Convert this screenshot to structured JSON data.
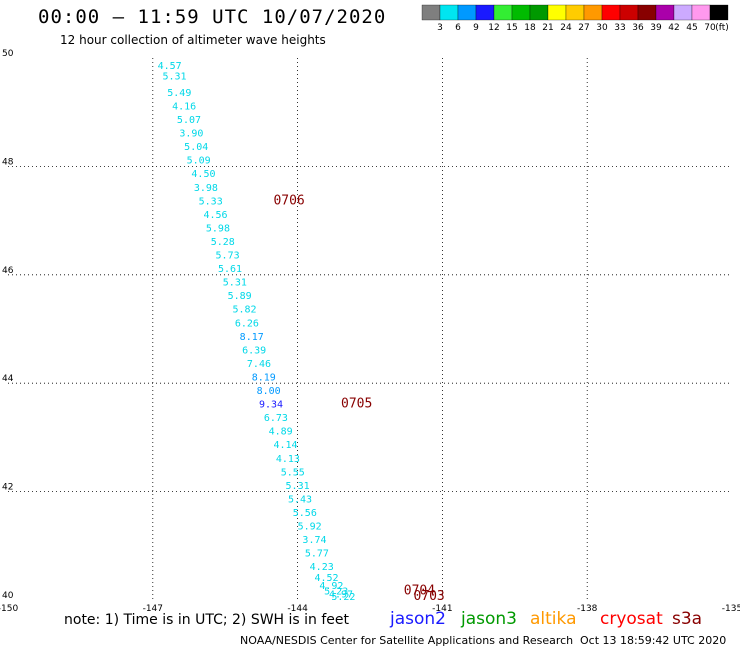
{
  "header": {
    "title": "00:00 – 11:59 UTC 10/07/2020",
    "subtitle": "12 hour collection of altimeter wave heights"
  },
  "colorbar": {
    "unit": "(ft)",
    "bins": [
      {
        "label": "3",
        "color": "#7f7f7f"
      },
      {
        "label": "6",
        "color": "#00e5f0"
      },
      {
        "label": "9",
        "color": "#0099ff"
      },
      {
        "label": "12",
        "color": "#1a1aff"
      },
      {
        "label": "15",
        "color": "#33ee33"
      },
      {
        "label": "18",
        "color": "#00bb00"
      },
      {
        "label": "21",
        "color": "#009900"
      },
      {
        "label": "24",
        "color": "#ffff00"
      },
      {
        "label": "27",
        "color": "#ffcc00"
      },
      {
        "label": "30",
        "color": "#ff9900"
      },
      {
        "label": "33",
        "color": "#ff0000"
      },
      {
        "label": "36",
        "color": "#cc0000"
      },
      {
        "label": "39",
        "color": "#880000"
      },
      {
        "label": "42",
        "color": "#aa00aa"
      },
      {
        "label": "45",
        "color": "#ccaaff"
      },
      {
        "label": "70",
        "color": "#ff99ee"
      },
      {
        "label": "",
        "color": "#000000"
      }
    ]
  },
  "chart_data": {
    "type": "scatter",
    "xlim": [
      -150,
      -135
    ],
    "ylim": [
      40,
      50
    ],
    "grid": true,
    "x_ticks": [
      {
        "value": -150,
        "label": "-150"
      },
      {
        "value": -147,
        "label": "-147"
      },
      {
        "value": -144,
        "label": "-144"
      },
      {
        "value": -141,
        "label": "-141"
      },
      {
        "value": -138,
        "label": "-138"
      },
      {
        "value": -135,
        "label": "-135"
      }
    ],
    "y_ticks": [
      {
        "value": 40,
        "label": "40"
      },
      {
        "value": 42,
        "label": "42"
      },
      {
        "value": 44,
        "label": "44"
      },
      {
        "value": 46,
        "label": "46"
      },
      {
        "value": 48,
        "label": "48"
      },
      {
        "value": 50,
        "label": "50"
      }
    ],
    "points": [
      {
        "lon": -146.9,
        "lat": 49.8,
        "value": "4.57",
        "color": "#00d8e8"
      },
      {
        "lon": -146.8,
        "lat": 49.6,
        "value": "5.31",
        "color": "#00d8e8"
      },
      {
        "lon": -146.7,
        "lat": 49.3,
        "value": "5.49",
        "color": "#00d8e8"
      },
      {
        "lon": -146.6,
        "lat": 49.05,
        "value": "4.16",
        "color": "#00d8e8"
      },
      {
        "lon": -146.5,
        "lat": 48.8,
        "value": "5.07",
        "color": "#00d8e8"
      },
      {
        "lon": -146.45,
        "lat": 48.55,
        "value": "3.90",
        "color": "#00d8e8"
      },
      {
        "lon": -146.35,
        "lat": 48.3,
        "value": "5.04",
        "color": "#00d8e8"
      },
      {
        "lon": -146.3,
        "lat": 48.05,
        "value": "5.09",
        "color": "#00d8e8"
      },
      {
        "lon": -146.2,
        "lat": 47.8,
        "value": "4.50",
        "color": "#00d8e8"
      },
      {
        "lon": -146.15,
        "lat": 47.55,
        "value": "3.98",
        "color": "#00d8e8"
      },
      {
        "lon": -146.05,
        "lat": 47.3,
        "value": "5.33",
        "color": "#00d8e8"
      },
      {
        "lon": -145.95,
        "lat": 47.05,
        "value": "4.56",
        "color": "#00d8e8"
      },
      {
        "lon": -145.9,
        "lat": 46.8,
        "value": "5.98",
        "color": "#00d8e8"
      },
      {
        "lon": -145.8,
        "lat": 46.55,
        "value": "5.28",
        "color": "#00d8e8"
      },
      {
        "lon": -145.7,
        "lat": 46.3,
        "value": "5.73",
        "color": "#00d8e8"
      },
      {
        "lon": -145.65,
        "lat": 46.05,
        "value": "5.61",
        "color": "#00d8e8"
      },
      {
        "lon": -145.55,
        "lat": 45.8,
        "value": "5.31",
        "color": "#00d8e8"
      },
      {
        "lon": -145.45,
        "lat": 45.55,
        "value": "5.89",
        "color": "#00d8e8"
      },
      {
        "lon": -145.35,
        "lat": 45.3,
        "value": "5.82",
        "color": "#00d8e8"
      },
      {
        "lon": -145.3,
        "lat": 45.05,
        "value": "6.26",
        "color": "#00d8e8"
      },
      {
        "lon": -145.2,
        "lat": 44.8,
        "value": "8.17",
        "color": "#0099ff"
      },
      {
        "lon": -145.15,
        "lat": 44.55,
        "value": "6.39",
        "color": "#00d8e8"
      },
      {
        "lon": -145.05,
        "lat": 44.3,
        "value": "7.46",
        "color": "#00d8e8"
      },
      {
        "lon": -144.95,
        "lat": 44.05,
        "value": "8.19",
        "color": "#0099ff"
      },
      {
        "lon": -144.85,
        "lat": 43.8,
        "value": "8.00",
        "color": "#0099ff"
      },
      {
        "lon": -144.8,
        "lat": 43.55,
        "value": "9.34",
        "color": "#1a1aff"
      },
      {
        "lon": -144.7,
        "lat": 43.3,
        "value": "6.73",
        "color": "#00d8e8"
      },
      {
        "lon": -144.6,
        "lat": 43.05,
        "value": "4.89",
        "color": "#00d8e8"
      },
      {
        "lon": -144.5,
        "lat": 42.8,
        "value": "4.14",
        "color": "#00d8e8"
      },
      {
        "lon": -144.45,
        "lat": 42.55,
        "value": "4.13",
        "color": "#00d8e8"
      },
      {
        "lon": -144.35,
        "lat": 42.3,
        "value": "5.55",
        "color": "#00d8e8"
      },
      {
        "lon": -144.25,
        "lat": 42.05,
        "value": "5.31",
        "color": "#00d8e8"
      },
      {
        "lon": -144.2,
        "lat": 41.8,
        "value": "5.43",
        "color": "#00d8e8"
      },
      {
        "lon": -144.1,
        "lat": 41.55,
        "value": "5.56",
        "color": "#00d8e8"
      },
      {
        "lon": -144.0,
        "lat": 41.3,
        "value": "5.92",
        "color": "#00d8e8"
      },
      {
        "lon": -143.9,
        "lat": 41.05,
        "value": "3.74",
        "color": "#00d8e8"
      },
      {
        "lon": -143.85,
        "lat": 40.8,
        "value": "5.77",
        "color": "#00d8e8"
      },
      {
        "lon": -143.75,
        "lat": 40.55,
        "value": "4.23",
        "color": "#00d8e8"
      },
      {
        "lon": -143.65,
        "lat": 40.35,
        "value": "4.52",
        "color": "#00d8e8"
      },
      {
        "lon": -143.55,
        "lat": 40.2,
        "value": "4.92",
        "color": "#00d8e8"
      },
      {
        "lon": -143.45,
        "lat": 40.1,
        "value": "5.23",
        "color": "#00d8e8"
      },
      {
        "lon": -143.35,
        "lat": 40.05,
        "value": "4.97",
        "color": "#00d8e8"
      },
      {
        "lon": -143.3,
        "lat": 40.0,
        "value": "5.22",
        "color": "#00d8e8"
      }
    ],
    "time_labels": [
      {
        "lon": -144.5,
        "lat": 47.3,
        "text": "0706",
        "color": "#880000"
      },
      {
        "lon": -143.1,
        "lat": 43.55,
        "text": "0705",
        "color": "#880000"
      },
      {
        "lon": -141.8,
        "lat": 40.1,
        "text": "0704",
        "color": "#880000"
      },
      {
        "lon": -141.6,
        "lat": 40.0,
        "text": "0703",
        "color": "#880000"
      }
    ]
  },
  "note": "note: 1) Time is in UTC; 2) SWH is in feet",
  "legend": [
    {
      "name": "jason2",
      "color": "#1a1aff"
    },
    {
      "name": "jason3",
      "color": "#009900"
    },
    {
      "name": "altika",
      "color": "#ff9900"
    },
    {
      "name": "cryosat",
      "color": "#ff0000"
    },
    {
      "name": "s3a",
      "color": "#880000"
    }
  ],
  "footer": {
    "credit": "NOAA/NESDIS Center for Satellite Applications and Research",
    "timestamp": "Oct 13 18:59:42 UTC 2020"
  }
}
